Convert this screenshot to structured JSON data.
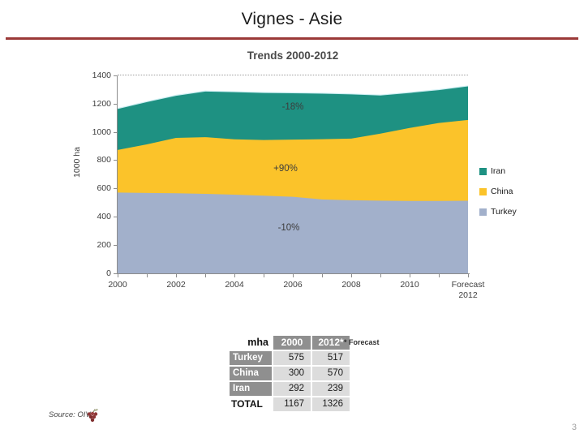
{
  "slide": {
    "title": "Vignes - Asie",
    "page_number": "3",
    "source_label": "Source: OIV",
    "accent_color": "#9B3938"
  },
  "chart_data": {
    "type": "area",
    "stacked": true,
    "title": "Trends 2000-2012",
    "xlabel": "",
    "ylabel": "1000 ha",
    "ylim": [
      0,
      1400
    ],
    "y_tick_labels": [
      "1400",
      "1200",
      "1000",
      "800",
      "600",
      "400",
      "200",
      "0"
    ],
    "x": [
      2000,
      2001,
      2002,
      2003,
      2004,
      2005,
      2006,
      2007,
      2008,
      2009,
      2010,
      2011,
      2012
    ],
    "x_tick_labels": [
      "2000",
      "2002",
      "2004",
      "2006",
      "2008",
      "2010",
      "Forecast\n2012"
    ],
    "series": [
      {
        "name": "Turkey",
        "color": "#A2B0CB",
        "values": [
          575,
          572,
          570,
          566,
          560,
          553,
          545,
          527,
          521,
          518,
          516,
          516,
          517
        ]
      },
      {
        "name": "China",
        "color": "#FBC32A",
        "values": [
          300,
          342,
          390,
          399,
          390,
          392,
          403,
          424,
          434,
          472,
          514,
          549,
          570
        ]
      },
      {
        "name": "Iran",
        "color": "#1E9182",
        "values": [
          292,
          301,
          300,
          325,
          335,
          335,
          330,
          324,
          315,
          272,
          250,
          235,
          239
        ]
      }
    ],
    "legend_position": "right",
    "legend": [
      {
        "label": "Iran",
        "color": "#1E9182"
      },
      {
        "label": "China",
        "color": "#FBC32A"
      },
      {
        "label": "Turkey",
        "color": "#A2B0CB"
      }
    ],
    "annotations": [
      {
        "series": "Iran",
        "text": "-18%"
      },
      {
        "series": "China",
        "text": "+90%"
      },
      {
        "series": "Turkey",
        "text": "-10%"
      }
    ]
  },
  "table": {
    "unit_header": "mha",
    "col_headers": [
      "2000",
      "2012*"
    ],
    "footnote": "* Forecast",
    "rows": [
      {
        "label": "Turkey",
        "values": [
          "575",
          "517"
        ]
      },
      {
        "label": "China",
        "values": [
          "300",
          "570"
        ]
      },
      {
        "label": "Iran",
        "values": [
          "292",
          "239"
        ]
      },
      {
        "label": "TOTAL",
        "values": [
          "1167",
          "1326"
        ]
      }
    ]
  }
}
